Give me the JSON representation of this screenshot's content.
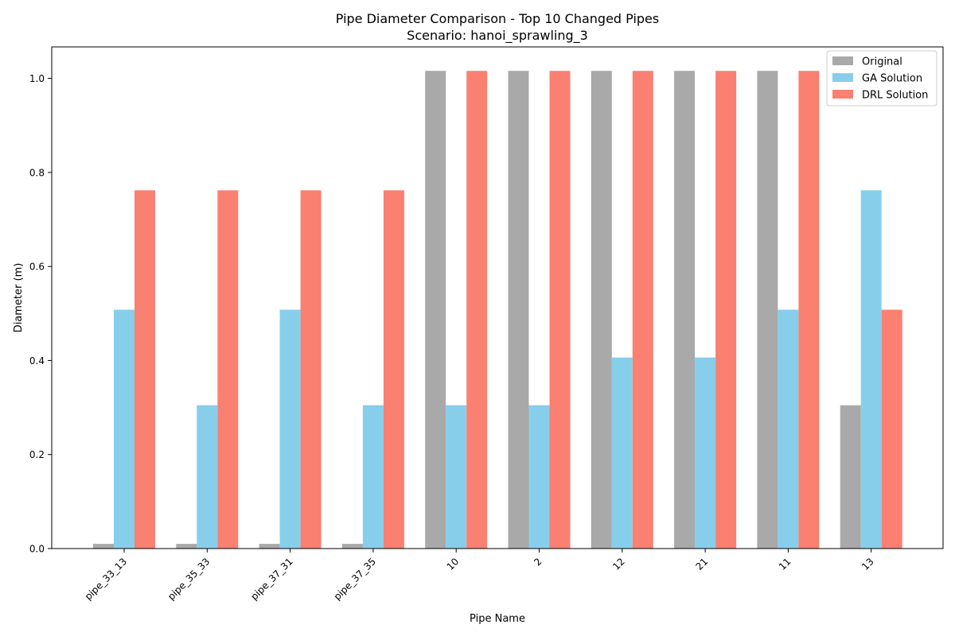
{
  "chart_data": {
    "type": "bar",
    "title": "Pipe Diameter Comparison - Top 10 Changed Pipes",
    "subtitle": "Scenario: hanoi_sprawling_3",
    "xlabel": "Pipe Name",
    "ylabel": "Diameter (m)",
    "ylim": [
      0,
      1.067
    ],
    "yticks": [
      "0.0",
      "0.2",
      "0.4",
      "0.6",
      "0.8",
      "1.0"
    ],
    "ytick_values": [
      0.0,
      0.2,
      0.4,
      0.6,
      0.8,
      1.0
    ],
    "categories": [
      "pipe_33_13",
      "pipe_35_33",
      "pipe_37_31",
      "pipe_37_35",
      "10",
      "2",
      "12",
      "21",
      "11",
      "13"
    ],
    "series": [
      {
        "name": "Original",
        "color": "#a9a9a9",
        "values": [
          0.01,
          0.01,
          0.01,
          0.01,
          1.016,
          1.016,
          1.016,
          1.016,
          1.016,
          0.3048
        ]
      },
      {
        "name": "GA Solution",
        "color": "#87ceeb",
        "values": [
          0.508,
          0.3048,
          0.508,
          0.3048,
          0.3048,
          0.3048,
          0.4064,
          0.4064,
          0.508,
          0.762
        ]
      },
      {
        "name": "DRL Solution",
        "color": "#fa8072",
        "values": [
          0.762,
          0.762,
          0.762,
          0.762,
          1.016,
          1.016,
          1.016,
          1.016,
          1.016,
          0.508
        ]
      }
    ],
    "legend_position": "top-right",
    "grid": false
  }
}
